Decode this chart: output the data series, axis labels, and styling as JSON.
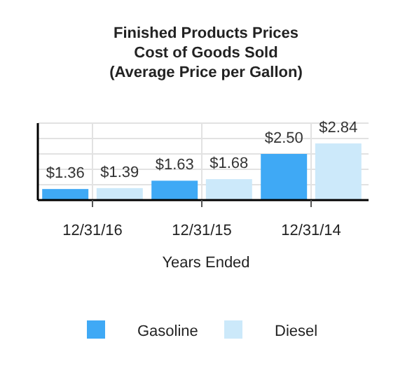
{
  "chart_data": {
    "type": "bar",
    "title": "Finished Products Prices\nCost of Goods Sold\n(Average Price per Gallon)",
    "xlabel": "Years Ended",
    "categories": [
      "12/31/16",
      "12/31/15",
      "12/31/14"
    ],
    "series": [
      {
        "name": "Gasoline",
        "color": "#3fa9f5",
        "values": [
          1.36,
          1.63,
          2.5
        ],
        "value_labels": [
          "$1.36",
          "$1.63",
          "$2.50"
        ]
      },
      {
        "name": "Diesel",
        "color": "#cce9fa",
        "values": [
          1.39,
          1.68,
          2.84
        ],
        "value_labels": [
          "$1.39",
          "$1.68",
          "$2.84"
        ]
      }
    ],
    "ylim": [
      1,
      3.5
    ],
    "yticks": [
      {
        "value": 1.5,
        "label": null
      },
      {
        "value": 2,
        "label": null
      },
      {
        "value": 2.5,
        "label": null
      },
      {
        "value": 3,
        "label": null
      },
      {
        "value": 3.5,
        "label": null
      }
    ],
    "tick_labels": "x",
    "grid": true,
    "legend": "bottom"
  }
}
